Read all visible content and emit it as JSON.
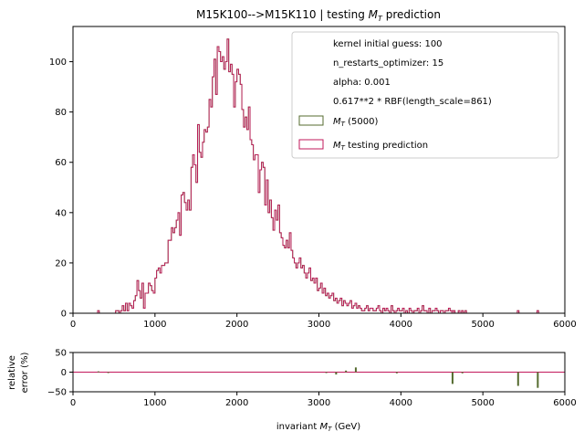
{
  "chart_data": [
    {
      "type": "histogram",
      "title": "M15K100-->M15K110 | testing M_T prediction",
      "title_prefix": "M15K100-->M15K110 | testing ",
      "title_var": "M",
      "title_sub": "T",
      "title_suffix": " prediction",
      "xlabel": "",
      "ylabel": "",
      "xlim": [
        0,
        6000
      ],
      "ylim": [
        0,
        114
      ],
      "xticks": [
        "0",
        "1000",
        "2000",
        "3000",
        "4000",
        "5000",
        "6000"
      ],
      "yticks": [
        "0",
        "20",
        "40",
        "60",
        "80",
        "100"
      ],
      "bin_width": 20,
      "bin_start": 300,
      "bin_values": [
        1,
        0,
        0,
        0,
        0,
        0,
        0,
        0,
        0,
        0,
        0,
        1,
        1,
        0,
        1,
        3,
        1,
        4,
        1,
        4,
        3,
        2,
        5,
        7,
        13,
        9,
        6,
        12,
        2,
        8,
        8,
        12,
        11,
        9,
        8,
        14,
        17,
        18,
        16,
        19,
        19,
        20,
        20,
        29,
        29,
        34,
        32,
        34,
        37,
        40,
        31,
        47,
        48,
        44,
        41,
        45,
        41,
        58,
        63,
        59,
        52,
        75,
        64,
        62,
        68,
        73,
        72,
        74,
        85,
        82,
        94,
        101,
        87,
        106,
        104,
        100,
        102,
        97,
        100,
        109,
        96,
        99,
        95,
        82,
        92,
        97,
        95,
        91,
        81,
        74,
        78,
        73,
        82,
        69,
        67,
        61,
        63,
        63,
        48,
        57,
        60,
        58,
        43,
        53,
        40,
        45,
        38,
        33,
        41,
        37,
        43,
        32,
        30,
        27,
        26,
        29,
        26,
        32,
        25,
        22,
        20,
        18,
        20,
        22,
        18,
        19,
        16,
        14,
        16,
        18,
        13,
        14,
        12,
        14,
        9,
        10,
        12,
        8,
        10,
        7,
        8,
        6,
        7,
        8,
        5,
        6,
        4,
        5,
        6,
        3,
        5,
        4,
        3,
        4,
        5,
        2,
        3,
        4,
        2,
        3,
        2,
        1,
        1,
        2,
        3,
        1,
        2,
        2,
        1,
        1,
        2,
        3,
        1,
        0,
        2,
        1,
        2,
        1,
        0,
        3,
        1,
        0,
        1,
        2,
        1,
        1,
        2,
        0,
        1,
        0,
        2,
        1,
        0,
        1,
        1,
        2,
        0,
        1,
        3,
        1,
        1,
        0,
        2,
        0,
        1,
        1,
        2,
        1,
        0,
        1,
        1,
        0,
        1,
        1,
        2,
        1,
        0,
        1,
        0,
        0,
        1,
        0,
        0,
        0,
        1,
        0
      ],
      "isolated_bins": [
        [
          4620,
          1
        ],
        [
          4740,
          1
        ],
        [
          5420,
          1
        ],
        [
          5660,
          1
        ]
      ],
      "series": [
        {
          "name": "M_T (5000)",
          "var": "M",
          "sub": "T",
          "suffix": " (5000)",
          "color": "#556b2f"
        },
        {
          "name": "M_T testing prediction",
          "var": "M",
          "sub": "T",
          "suffix": " testing prediction",
          "color": "#c2185b"
        }
      ],
      "legend_placement": "upper right",
      "legend_info": [
        "kernel initial guess: 100",
        "n_restarts_optimizer: 15",
        "alpha: 0.001",
        "0.617**2 * RBF(length_scale=861)"
      ]
    },
    {
      "type": "bar",
      "title": "",
      "xlabel": "invariant M_T (GeV)",
      "xlabel_prefix": "invariant ",
      "xlabel_var": "M",
      "xlabel_sub": "T",
      "xlabel_suffix": " (GeV)",
      "ylabel_line1": "relative",
      "ylabel_line2": "error (%)",
      "xlim": [
        0,
        6000
      ],
      "ylim": [
        -50,
        50
      ],
      "xticks": [
        "0",
        "1000",
        "2000",
        "3000",
        "4000",
        "5000",
        "6000"
      ],
      "yticks": [
        "50",
        "0",
        "−50"
      ],
      "reference_line_color": "#c2185b",
      "bar_color": "#556b2f",
      "x": [
        300,
        420,
        3080,
        3200,
        3320,
        3440,
        3940,
        4620,
        4740,
        5420,
        5660
      ],
      "values": [
        2,
        -2,
        -2,
        -6,
        4,
        12,
        -3,
        -30,
        -3,
        -35,
        -40
      ]
    }
  ]
}
